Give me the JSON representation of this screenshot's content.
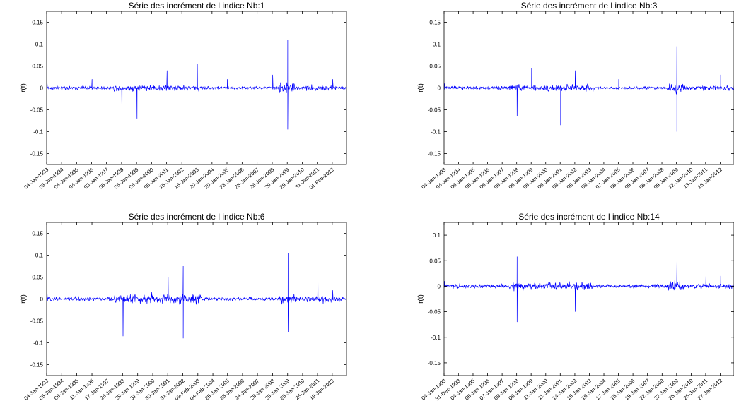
{
  "chart_data": [
    {
      "type": "line",
      "title": "Série des incrément de l indice Nb:1",
      "ylabel": "r(t)",
      "xlabel": "",
      "ylim": [
        -0.175,
        0.175
      ],
      "yticks": [
        "0.15",
        "0.1",
        "0.05",
        "0",
        "-0.05",
        "-0.1",
        "-0.15"
      ],
      "ytick_values": [
        0.15,
        0.1,
        0.05,
        0,
        -0.05,
        -0.1,
        -0.15
      ],
      "xticks": [
        "04-Jan-1993",
        "03-Jan-1994",
        "04-Jan-1995",
        "04-Jan-1996",
        "03-Jan-1997",
        "05-Jan-1998",
        "06-Jan-1999",
        "06-Jan-2000",
        "08-Jan-2001",
        "15-Jan-2002",
        "16-Jan-2003",
        "20-Jan-2004",
        "20-Jan-2005",
        "23-Jan-2006",
        "25-Jan-2007",
        "28-Jan-2008",
        "29-Jan-2009",
        "29-Jan-2010",
        "31-Jan-2011",
        "01-Feb-2012"
      ],
      "color": "#0000ff",
      "series": [
        {
          "values": [
            {
              "x": "04-Jan-1993",
              "y": 0.012
            },
            {
              "x": "04-Jan-1996",
              "y": 0.02
            },
            {
              "x": "05-Jan-1998",
              "y": -0.07
            },
            {
              "x": "06-Jan-1999",
              "y": -0.07
            },
            {
              "x": "08-Jan-2001",
              "y": 0.04
            },
            {
              "x": "16-Jan-2003",
              "y": 0.055
            },
            {
              "x": "20-Jan-2005",
              "y": 0.02
            },
            {
              "x": "28-Jan-2008",
              "y": 0.03
            },
            {
              "x": "29-Jan-2009",
              "y": 0.11
            },
            {
              "x": "29-Jan-2009",
              "y": -0.095
            },
            {
              "x": "01-Feb-2012",
              "y": 0.02
            }
          ]
        }
      ]
    },
    {
      "type": "line",
      "title": "Série des incrément de l indice Nb:3",
      "ylabel": "r(t)",
      "xlabel": "",
      "ylim": [
        -0.175,
        0.175
      ],
      "yticks": [
        "0.15",
        "0.1",
        "0.05",
        "0",
        "-0.05",
        "-0.1",
        "-0.15"
      ],
      "ytick_values": [
        0.15,
        0.1,
        0.05,
        0,
        -0.05,
        -0.1,
        -0.15
      ],
      "xticks": [
        "04-Jan-1993",
        "04-Jan-1994",
        "05-Jan-1995",
        "05-Jan-1996",
        "06-Jan-1997",
        "06-Jan-1998",
        "06-Jan-1999",
        "06-Jan-2000",
        "05-Jan-2001",
        "08-Jan-2002",
        "08-Jan-2003",
        "08-Jan-2004",
        "07-Jan-2005",
        "09-Jan-2006",
        "09-Jan-2007",
        "09-Jan-2008",
        "09-Jan-2009",
        "12-Jan-2010",
        "13-Jan-2011",
        "16-Jan-2012"
      ],
      "color": "#0000ff",
      "series": [
        {
          "values": [
            {
              "x": "04-Jan-1993",
              "y": 0.01
            },
            {
              "x": "06-Jan-1998",
              "y": -0.065
            },
            {
              "x": "06-Jan-1999",
              "y": 0.045
            },
            {
              "x": "05-Jan-2001",
              "y": -0.085
            },
            {
              "x": "08-Jan-2002",
              "y": 0.04
            },
            {
              "x": "07-Jan-2005",
              "y": 0.02
            },
            {
              "x": "09-Jan-2009",
              "y": 0.095
            },
            {
              "x": "09-Jan-2009",
              "y": -0.1
            },
            {
              "x": "16-Jan-2012",
              "y": 0.03
            }
          ]
        }
      ]
    },
    {
      "type": "line",
      "title": "Série des incrément de l indice Nb:6",
      "ylabel": "r(t)",
      "xlabel": "",
      "ylim": [
        -0.175,
        0.175
      ],
      "yticks": [
        "0.15",
        "0.1",
        "0.05",
        "0",
        "-0.05",
        "-0.1",
        "-0.15"
      ],
      "ytick_values": [
        0.15,
        0.1,
        0.05,
        0,
        -0.05,
        -0.1,
        -0.15
      ],
      "xticks": [
        "04-Jan-1993",
        "05-Jan-1994",
        "06-Jan-1995",
        "11-Jan-1996",
        "17-Jan-1997",
        "26-Jan-1998",
        "29-Jan-1999",
        "31-Jan-2000",
        "30-Jan-2001",
        "31-Jan-2002",
        "03-Feb-2003",
        "04-Feb-2004",
        "25-Jan-2005",
        "25-Jan-2006",
        "24-Jan-2007",
        "28-Jan-2008",
        "28-Jan-2009",
        "28-Jan-2010",
        "25-Jan-2011",
        "19-Jan-2012"
      ],
      "color": "#0000ff",
      "series": [
        {
          "values": [
            {
              "x": "04-Jan-1993",
              "y": 0.015
            },
            {
              "x": "26-Jan-1998",
              "y": -0.085
            },
            {
              "x": "30-Jan-2001",
              "y": 0.05
            },
            {
              "x": "31-Jan-2002",
              "y": 0.075
            },
            {
              "x": "31-Jan-2002",
              "y": -0.09
            },
            {
              "x": "28-Jan-2009",
              "y": 0.105
            },
            {
              "x": "28-Jan-2009",
              "y": -0.075
            },
            {
              "x": "25-Jan-2011",
              "y": 0.05
            },
            {
              "x": "19-Jan-2012",
              "y": 0.02
            }
          ]
        }
      ]
    },
    {
      "type": "line",
      "title": "Série des incrément de l indice Nb:14",
      "ylabel": "r(t)",
      "xlabel": "",
      "ylim": [
        -0.175,
        0.125
      ],
      "yticks": [
        "0.1",
        "0.05",
        "0",
        "-0.05",
        "-0.1",
        "-0.15"
      ],
      "ytick_values": [
        0.1,
        0.05,
        0,
        -0.05,
        -0.1,
        -0.15
      ],
      "xticks": [
        "04-Jan-1993",
        "31-Dec-1993",
        "04-Jan-1995",
        "05-Jan-1996",
        "07-Jan-1997",
        "08-Jan-1998",
        "08-Jan-1999",
        "11-Jan-2000",
        "11-Jan-2001",
        "14-Jan-2002",
        "15-Jan-2003",
        "16-Jan-2004",
        "17-Jan-2005",
        "18-Jan-2006",
        "19-Jan-2007",
        "22-Jan-2008",
        "22-Jan-2009",
        "25-Jan-2010",
        "25-Jan-2011",
        "27-Jan-2012"
      ],
      "color": "#0000ff",
      "series": [
        {
          "values": [
            {
              "x": "04-Jan-1993",
              "y": 0.01
            },
            {
              "x": "08-Jan-1998",
              "y": 0.058
            },
            {
              "x": "08-Jan-1998",
              "y": -0.07
            },
            {
              "x": "14-Jan-2002",
              "y": -0.05
            },
            {
              "x": "22-Jan-2009",
              "y": 0.055
            },
            {
              "x": "22-Jan-2009",
              "y": -0.085
            },
            {
              "x": "25-Jan-2011",
              "y": 0.035
            },
            {
              "x": "27-Jan-2012",
              "y": 0.02
            }
          ]
        }
      ]
    }
  ]
}
